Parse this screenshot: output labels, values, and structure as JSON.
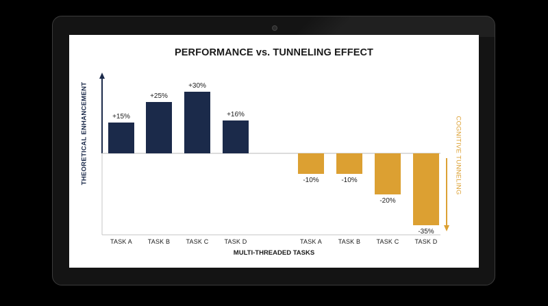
{
  "chart_data": {
    "type": "bar",
    "title": "PERFORMANCE vs. TUNNELING EFFECT",
    "xlabel": "MULTI-THREADED TASKS",
    "ylabel": "THEORETICAL ENHANCEMENT",
    "ylabel_right": "COGNITIVE TUNNELING",
    "ylim": [
      -38,
      38
    ],
    "grid": false,
    "legend": "none",
    "series": [
      {
        "categories": [
          "TASK A",
          "TASK B",
          "TASK C",
          "TASK D"
        ],
        "values": [
          15,
          25,
          30,
          16
        ],
        "labels": [
          "+15%",
          "+25%",
          "+30%",
          "+16%"
        ],
        "color": "#1b2a4a"
      },
      {
        "categories": [
          "TASK A",
          "TASK B",
          "TASK C",
          "TASK D"
        ],
        "values": [
          -10,
          -10,
          -20,
          -35
        ],
        "labels": [
          "-10%",
          "-10%",
          "-20%",
          "-35%"
        ],
        "color": "#dca032"
      }
    ],
    "colors": {
      "positive": "#1b2a4a",
      "negative": "#dca032",
      "axis": "#b0b0b0"
    }
  }
}
